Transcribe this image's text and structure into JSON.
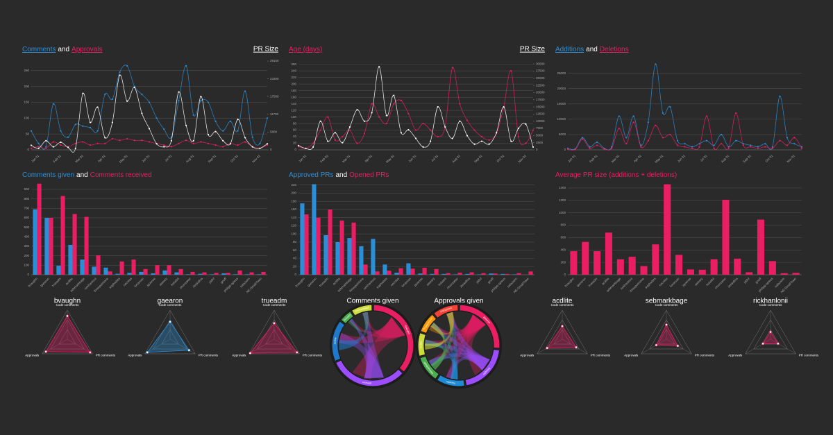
{
  "chart_data": [
    {
      "type": "line",
      "joiner": "and",
      "categories": [
        null,
        "Jan 01",
        null,
        null,
        "Feb 01",
        null,
        null,
        "Mar 01",
        null,
        null,
        "Apr 01",
        null,
        null,
        "May 01",
        null,
        null,
        "Jun 01",
        null,
        null,
        "Jul 01",
        null,
        null,
        "Aug 01",
        null,
        null,
        "Sep 01",
        null,
        null,
        "Oct 01",
        null,
        null,
        "Nov 01",
        null
      ],
      "series": [
        {
          "name": "Comments",
          "color": "#2a8fd8",
          "values": [
            60,
            20,
            10,
            145,
            60,
            40,
            80,
            75,
            70,
            60,
            175,
            160,
            245,
            265,
            200,
            175,
            150,
            100,
            65,
            40,
            155,
            265,
            110,
            155,
            150,
            90,
            60,
            90,
            60,
            185,
            40,
            20,
            100
          ]
        },
        {
          "name": "Approvals",
          "color": "#e91e63",
          "values": [
            5,
            10,
            5,
            25,
            15,
            10,
            20,
            25,
            15,
            20,
            20,
            35,
            30,
            35,
            30,
            30,
            25,
            20,
            15,
            10,
            20,
            30,
            20,
            25,
            20,
            15,
            10,
            20,
            15,
            25,
            10,
            5,
            15
          ]
        },
        {
          "name": "PR Size",
          "color": "#ffffff",
          "axis": "y2",
          "values": [
            1500,
            500,
            3000,
            1000,
            2500,
            800,
            500,
            18500,
            9000,
            14000,
            4000,
            9000,
            24500,
            16000,
            20500,
            12000,
            7000,
            2000,
            1000,
            3000,
            19000,
            8000,
            3000,
            17500,
            5000,
            6000,
            3000,
            2000,
            10000,
            4000,
            1000,
            500,
            2000
          ]
        }
      ],
      "ylim": [
        0,
        280
      ],
      "yticks": [
        0,
        50,
        100,
        150,
        200,
        250
      ],
      "y2lim": [
        0,
        29150
      ],
      "y2ticks": [
        0,
        5800,
        11700,
        17500,
        23300,
        29150
      ]
    },
    {
      "type": "line",
      "joiner": "and",
      "categories": [
        null,
        "Jan 01",
        null,
        null,
        "Feb 01",
        null,
        null,
        "Mar 01",
        null,
        null,
        "Apr 01",
        null,
        null,
        "May 01",
        null,
        null,
        "Jun 01",
        null,
        null,
        "Jul 01",
        null,
        null,
        "Aug 01",
        null,
        null,
        "Sep 01",
        null,
        null,
        "Oct 01",
        null,
        null,
        "Nov 01",
        null
      ],
      "series": [
        {
          "name": "Age (days)",
          "color": "#e91e63",
          "values": [
            10,
            5,
            20,
            60,
            100,
            30,
            40,
            60,
            20,
            50,
            140,
            100,
            80,
            140,
            150,
            110,
            60,
            80,
            60,
            40,
            70,
            250,
            140,
            90,
            60,
            40,
            30,
            50,
            130,
            240,
            40,
            20,
            60
          ]
        },
        {
          "name": "PR Size",
          "color": "#ffffff",
          "axis": "y2",
          "values": [
            1500,
            500,
            1000,
            10000,
            3000,
            6000,
            2500,
            8000,
            14000,
            10000,
            13000,
            29000,
            12000,
            19000,
            6000,
            7000,
            4000,
            1000,
            3000,
            15000,
            8000,
            4000,
            10000,
            5000,
            2000,
            3000,
            2000,
            6000,
            15000,
            3000,
            7500,
            9000,
            1000
          ]
        }
      ],
      "ylim": [
        0,
        270
      ],
      "yticks": [
        0,
        20,
        40,
        60,
        80,
        100,
        120,
        140,
        160,
        180,
        200,
        220,
        240,
        260
      ],
      "y2lim": [
        0,
        31000
      ],
      "y2ticks": [
        0,
        2500,
        5000,
        7500,
        10000,
        12500,
        15000,
        17500,
        20000,
        22500,
        25000,
        27500,
        30000
      ]
    },
    {
      "type": "line",
      "joiner": "and",
      "categories": [
        null,
        "Jan 01",
        null,
        null,
        "Feb 01",
        null,
        null,
        "Mar 01",
        null,
        null,
        "Apr 01",
        null,
        null,
        "May 01",
        null,
        null,
        "Jun 01",
        null,
        null,
        "Jul 01",
        null,
        null,
        "Aug 01",
        null,
        null,
        "Sep 01",
        null,
        null,
        "Oct 01",
        null,
        null,
        "Nov 01",
        null
      ],
      "series": [
        {
          "name": "Additions",
          "color": "#2a8fd8",
          "values": [
            500,
            300,
            4000,
            1000,
            2500,
            500,
            1000,
            11000,
            4000,
            11000,
            1500,
            9000,
            28000,
            12000,
            14000,
            3000,
            2000,
            1000,
            2000,
            3000,
            1500,
            5000,
            1000,
            3000,
            2000,
            1500,
            1000,
            2000,
            1000,
            17500,
            4000,
            2000,
            1000
          ]
        },
        {
          "name": "Deletions",
          "color": "#e91e63",
          "values": [
            200,
            100,
            3500,
            500,
            1500,
            300,
            500,
            7000,
            2000,
            9000,
            1000,
            3000,
            8000,
            4000,
            5000,
            1500,
            1000,
            500,
            1000,
            11000,
            500,
            2000,
            500,
            12000,
            1500,
            1000,
            500,
            1000,
            500,
            3000,
            1500,
            4000,
            500
          ]
        }
      ],
      "ylim": [
        0,
        29000
      ],
      "yticks": [
        0,
        5000,
        10000,
        15000,
        20000,
        25000
      ]
    },
    {
      "type": "bar",
      "joiner": "and",
      "categories": [
        "bvaughn",
        "gaearon",
        "trueadm",
        "acdlite",
        "sebmarkbage",
        "rickhanlonii",
        "threepointone",
        "sophiebits",
        "necolas",
        "lunaruan",
        "jquense",
        "aweary",
        "koba04",
        "nhunzaker",
        "Jessidhia",
        "jddxf",
        "gnoff",
        "philipp-spiess",
        "salazarm",
        "NE-SmallTown"
      ],
      "series": [
        {
          "name": "Comments given",
          "color": "#2a8fd8",
          "values": [
            690,
            600,
            95,
            315,
            160,
            85,
            75,
            10,
            20,
            30,
            15,
            45,
            25,
            5,
            10,
            5,
            15,
            5,
            5,
            5
          ]
        },
        {
          "name": "Comments received",
          "color": "#e91e63",
          "values": [
            960,
            600,
            830,
            640,
            610,
            205,
            35,
            140,
            160,
            60,
            100,
            100,
            60,
            30,
            25,
            20,
            20,
            45,
            25,
            30
          ]
        }
      ],
      "ylim": [
        0,
        980
      ],
      "yticks": [
        0,
        100,
        200,
        300,
        400,
        500,
        600,
        700,
        800,
        900
      ]
    },
    {
      "type": "bar",
      "joiner": "and",
      "categories": [
        "bvaughn",
        "gaearon",
        "trueadm",
        "acdlite",
        "sebmarkbage",
        "threepointone",
        "rickhanlonii",
        "sophiebits",
        "necolas",
        "lunaruan",
        "jquense",
        "aweary",
        "koba04",
        "nhunzaker",
        "Jessidhia",
        "jddxf",
        "gnoff",
        "philipp-spiess",
        "salazarm",
        "NE-SmallTown"
      ],
      "series": [
        {
          "name": "Approved PRs",
          "color": "#2a8fd8",
          "values": [
            175,
            222,
            97,
            80,
            90,
            70,
            88,
            25,
            5,
            28,
            3,
            2,
            2,
            1,
            2,
            1,
            3,
            2,
            1,
            0
          ]
        },
        {
          "name": "Opened PRs",
          "color": "#e91e63",
          "values": [
            148,
            140,
            160,
            133,
            128,
            25,
            8,
            10,
            16,
            15,
            17,
            14,
            4,
            5,
            6,
            4,
            3,
            2,
            4,
            8
          ]
        }
      ],
      "ylim": [
        0,
        228
      ],
      "yticks": [
        0,
        20,
        40,
        60,
        80,
        100,
        120,
        140,
        160,
        180,
        200,
        220
      ]
    },
    {
      "type": "bar",
      "categories": [
        "bvaughn",
        "gaearon",
        "trueadm",
        "acdlite",
        "sebmarkbage",
        "rickhanlonii",
        "threepointone",
        "sophiebits",
        "necolas",
        "lunaruan",
        "jquense",
        "aweary",
        "koba04",
        "nhunzaker",
        "Jessidhia",
        "jddxf",
        "gnoff",
        "philipp-spiess",
        "salazarm",
        "NE-SmallTown"
      ],
      "series": [
        {
          "name": "Average PR size (additions + deletions)",
          "color": "#e91e63",
          "values": [
            380,
            530,
            380,
            680,
            250,
            290,
            140,
            490,
            1460,
            320,
            85,
            80,
            250,
            1210,
            260,
            40,
            890,
            220,
            25,
            30
          ]
        }
      ],
      "ylim": [
        0,
        1500
      ],
      "yticks": [
        0,
        200,
        400,
        600,
        800,
        1000,
        1200,
        1400
      ]
    },
    {
      "type": "radar",
      "title": "bvaughn",
      "axes": [
        "Code comments",
        "PR comments",
        "Approvals"
      ],
      "color": "#e91e63",
      "rlim": [
        0,
        1
      ],
      "values": [
        0.8,
        0.9,
        0.85
      ]
    },
    {
      "type": "radar",
      "title": "gaearon",
      "axes": [
        "Code comments",
        "PR comments",
        "Approvals"
      ],
      "color": "#2a8fd8",
      "rlim": [
        0,
        1
      ],
      "values": [
        0.6,
        0.75,
        0.9
      ]
    },
    {
      "type": "radar",
      "title": "trueadm",
      "axes": [
        "Code comments",
        "PR comments",
        "Approvals"
      ],
      "color": "#e91e63",
      "rlim": [
        0,
        1
      ],
      "values": [
        0.55,
        0.9,
        0.95
      ]
    },
    {
      "type": "chord",
      "title": "Comments given",
      "categories": [
        "bvaughn",
        "gaearon",
        "acdlite",
        "trueadm",
        "sebmarkbage"
      ],
      "colors": [
        "#e91e63",
        "#9c4dff",
        "#1f78c8",
        "#4caf50",
        "#cddc39"
      ],
      "values": [
        690,
        600,
        315,
        95,
        160
      ]
    },
    {
      "type": "chord",
      "title": "Approvals given",
      "categories": [
        "gaearon",
        "bvaughn",
        "trueadm",
        "sebmarkbage",
        "acdlite",
        "threepointone",
        "rickhanlonii"
      ],
      "colors": [
        "#e91e63",
        "#9c4dff",
        "#1f8dd6",
        "#4caf50",
        "#cddc39",
        "#ff9800",
        "#f44336"
      ],
      "values": [
        222,
        175,
        97,
        90,
        80,
        70,
        88
      ]
    },
    {
      "type": "radar",
      "title": "acdlite",
      "axes": [
        "Code comments",
        "PR comments",
        "Approvals"
      ],
      "color": "#e91e63",
      "rlim": [
        0,
        1
      ],
      "values": [
        0.45,
        0.55,
        0.6
      ]
    },
    {
      "type": "radar",
      "title": "sebmarkbage",
      "axes": [
        "Code comments",
        "PR comments",
        "Approvals"
      ],
      "color": "#e91e63",
      "rlim": [
        0,
        1
      ],
      "values": [
        0.5,
        0.45,
        0.4
      ]
    },
    {
      "type": "radar",
      "title": "rickhanlonii",
      "axes": [
        "Code comments",
        "PR comments",
        "Approvals"
      ],
      "color": "#e91e63",
      "rlim": [
        0,
        1
      ],
      "values": [
        0.25,
        0.3,
        0.3
      ]
    }
  ]
}
